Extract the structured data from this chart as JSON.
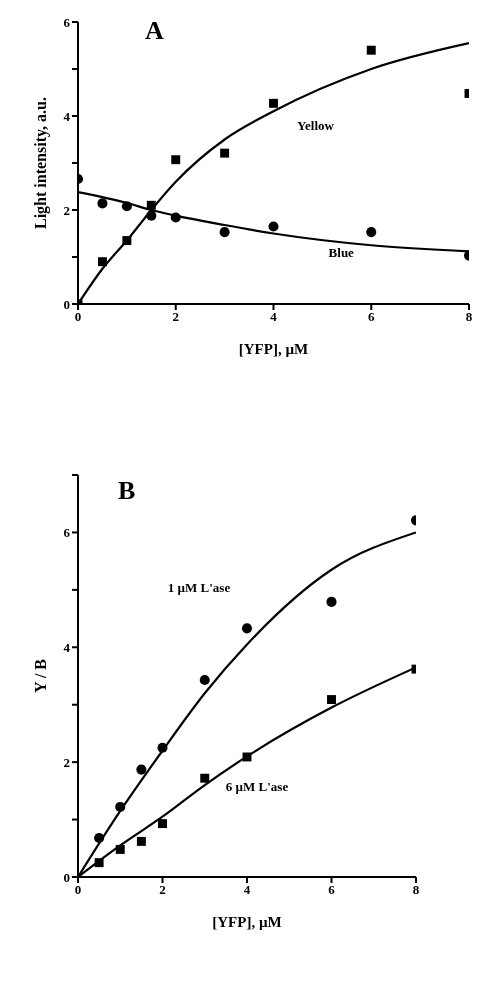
{
  "chart_data": [
    {
      "type": "scatter",
      "title": "A",
      "xlabel": "[YFP], µM",
      "ylabel": "Light intensity, a.u.",
      "xlim": [
        0,
        8
      ],
      "xticks": [
        0,
        2,
        4,
        6,
        8
      ],
      "ylim": [
        0,
        6
      ],
      "yticks": [
        0,
        {
          "value": 1,
          "label": null
        },
        2,
        {
          "value": 3,
          "label": null
        },
        4,
        {
          "value": 5,
          "label": null
        },
        6
      ],
      "series": [
        {
          "name": "Yellow",
          "marker": "square",
          "color": "#000000",
          "x": [
            0,
            0.5,
            1,
            1.5,
            2,
            3,
            4,
            6,
            8
          ],
          "values": [
            0,
            0.9,
            1.35,
            2.1,
            3.07,
            3.21,
            4.27,
            5.4,
            4.48
          ]
        },
        {
          "name": "Blue",
          "marker": "circle",
          "color": "#000000",
          "x": [
            0,
            0.5,
            1,
            1.5,
            2,
            3,
            4,
            6,
            8
          ],
          "values": [
            2.66,
            2.14,
            2.08,
            1.88,
            1.84,
            1.53,
            1.65,
            1.53,
            1.03
          ]
        },
        {
          "type": "line",
          "marker": "none",
          "color": "#000000",
          "x": [
            0,
            0.5,
            1,
            1.5,
            2,
            3,
            4,
            6,
            8
          ],
          "values": [
            0,
            0.75,
            1.35,
            2.0,
            2.6,
            3.5,
            4.1,
            5.0,
            5.55
          ]
        },
        {
          "type": "line",
          "marker": "none",
          "color": "#000000",
          "x": [
            0,
            1,
            1.5,
            2,
            3,
            4,
            6,
            8
          ],
          "values": [
            2.38,
            2.15,
            2.0,
            1.88,
            1.68,
            1.5,
            1.25,
            1.12
          ]
        }
      ]
    },
    {
      "type": "scatter",
      "title": "B",
      "xlabel": "[YFP],  µM",
      "ylabel": "Y / B",
      "xlim": [
        0,
        8
      ],
      "xticks": [
        0,
        2,
        4,
        6,
        8
      ],
      "ylim": [
        0,
        7
      ],
      "yticks": [
        0,
        {
          "value": 1,
          "label": null
        },
        2,
        {
          "value": 3,
          "label": null
        },
        4,
        {
          "value": 5,
          "label": null
        },
        6,
        {
          "value": 7,
          "label": null
        }
      ],
      "series": [
        {
          "name": "1 µM L'ase",
          "marker": "circle",
          "color": "#000000",
          "x": [
            0.5,
            1,
            1.5,
            2,
            3,
            4,
            6,
            8
          ],
          "values": [
            0.68,
            1.22,
            1.87,
            2.25,
            3.43,
            4.33,
            4.79,
            6.21
          ]
        },
        {
          "name": "6 µM L'ase",
          "marker": "square",
          "color": "#000000",
          "x": [
            0.5,
            1,
            1.5,
            2,
            3,
            4,
            6,
            8
          ],
          "values": [
            0.25,
            0.48,
            0.62,
            0.93,
            1.72,
            2.09,
            3.09,
            3.62
          ]
        },
        {
          "type": "line",
          "marker": "none",
          "color": "#000000",
          "x": [
            0,
            1,
            2,
            3,
            4,
            6,
            8
          ],
          "values": [
            0,
            1.15,
            2.2,
            3.2,
            4.05,
            5.35,
            6.0
          ]
        },
        {
          "type": "line",
          "marker": "none",
          "color": "#000000",
          "x": [
            0,
            1,
            2,
            3,
            4,
            6,
            8
          ],
          "values": [
            0,
            0.55,
            1.05,
            1.6,
            2.1,
            2.95,
            3.65
          ]
        }
      ]
    }
  ]
}
